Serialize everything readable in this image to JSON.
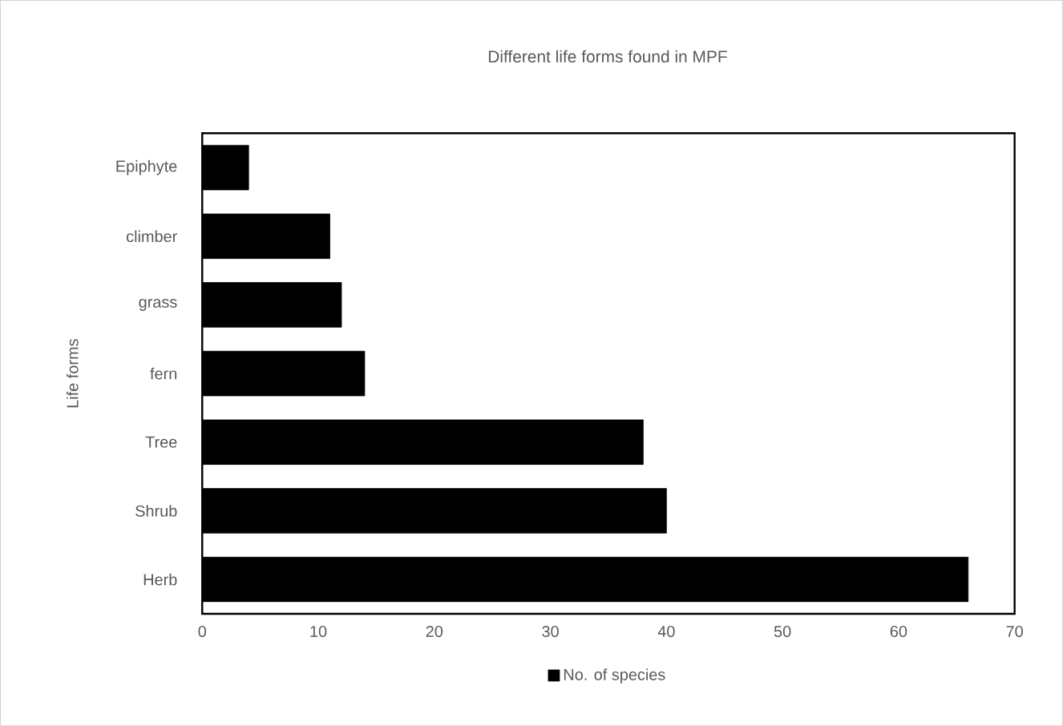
{
  "chart_data": {
    "type": "bar",
    "orientation": "horizontal",
    "title": "Different life forms found in MPF",
    "ylabel": "Life forms",
    "categories": [
      "Epiphyte",
      "climber",
      "grass",
      "fern",
      "Tree",
      "Shrub",
      "Herb"
    ],
    "series": [
      {
        "name": "No. of species",
        "color": "#000000",
        "values": [
          4,
          11,
          12,
          14,
          38,
          40,
          66
        ]
      }
    ],
    "xlim": [
      0,
      70
    ],
    "xticks": [
      0,
      10,
      20,
      30,
      40,
      50,
      60,
      70
    ],
    "legend": "bottom"
  }
}
